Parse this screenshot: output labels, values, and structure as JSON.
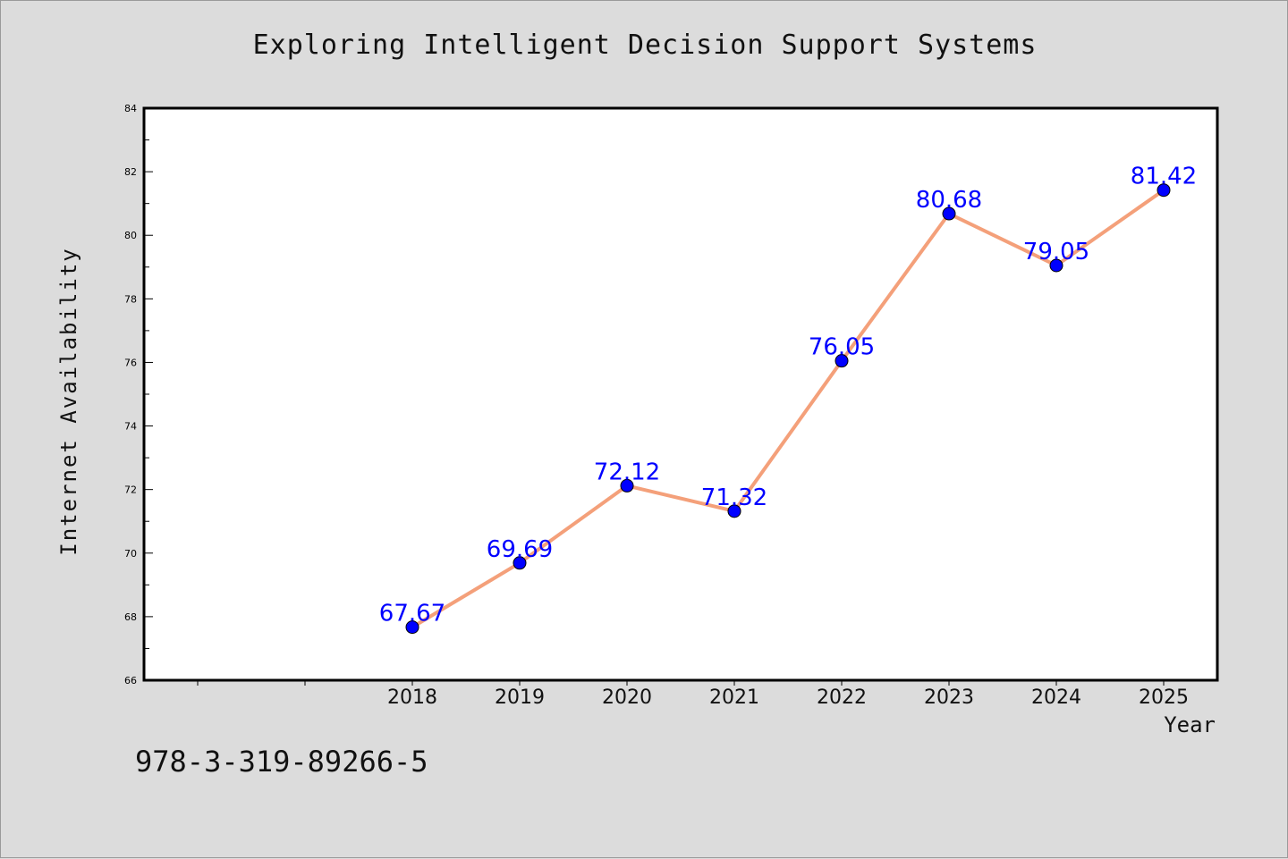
{
  "chart_data": {
    "type": "line",
    "title": "Exploring Intelligent Decision Support Systems",
    "xlabel": "Year",
    "ylabel": "Internet Availability",
    "x": [
      "2018",
      "2019",
      "2020",
      "2021",
      "2022",
      "2023",
      "2024",
      "2025"
    ],
    "series": [
      {
        "values": [
          67.67,
          69.69,
          72.12,
          71.32,
          76.05,
          80.68,
          79.05,
          81.42
        ],
        "labels": [
          "67.67",
          "69.69",
          "72.12",
          "71.32",
          "76.05",
          "80.68",
          "79.05",
          "81.42"
        ],
        "line_color": "#f4a07a",
        "marker_color": "#0000ff",
        "label_color": "#0000ff"
      }
    ],
    "ylim": [
      66,
      84
    ],
    "yticks": [
      "66",
      "68",
      "70",
      "72",
      "74",
      "76",
      "78",
      "80",
      "82",
      "84"
    ],
    "x_slots": 10,
    "x_first_label_slot": 2,
    "grid": false
  },
  "footer": {
    "isbn": "978-3-319-89266-5"
  }
}
